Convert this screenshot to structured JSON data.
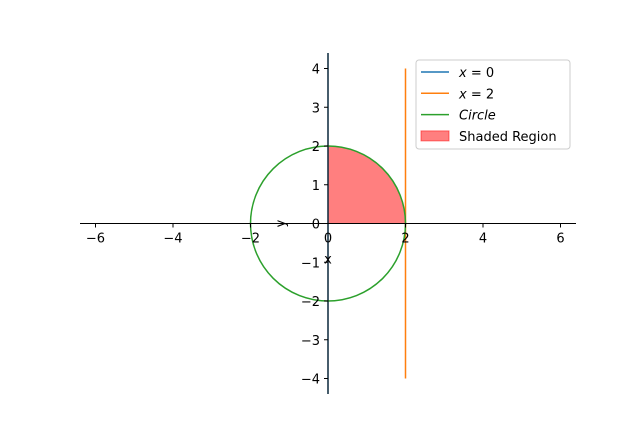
{
  "chart_data": {
    "type": "line",
    "title": "",
    "xlim": [
      -6.4,
      6.4
    ],
    "ylim": [
      -4.4,
      4.4
    ],
    "xticks": [
      -6,
      -4,
      -2,
      0,
      2,
      4,
      6
    ],
    "yticks": [
      -4,
      -3,
      -2,
      -1,
      0,
      1,
      2,
      3,
      4
    ],
    "tick_labels": {
      "x": [
        "−6",
        "−4",
        "−2",
        "0",
        "2",
        "4",
        "6"
      ],
      "y": [
        "−4",
        "−3",
        "−2",
        "−1",
        "0",
        "1",
        "2",
        "3",
        "4"
      ]
    },
    "xlabel": "x",
    "ylabel": "y",
    "grid": false,
    "spines": "centered at origin",
    "legend_position": "top-right",
    "series": [
      {
        "name": "x = 0",
        "kind": "vertical-line",
        "x": 0,
        "y_range": [
          -4.4,
          4.4
        ],
        "color": "#1f77b4"
      },
      {
        "name": "x = 2",
        "kind": "vertical-line",
        "x": 2,
        "y_range": [
          -4,
          4
        ],
        "color": "#ff7f0e"
      },
      {
        "name": "Circle",
        "kind": "circle",
        "center": [
          0,
          0
        ],
        "radius": 2,
        "color": "#2ca02c"
      },
      {
        "name": "Shaded Region",
        "kind": "fill",
        "description": "quarter disk x≥0, y≥0, x²+y²≤4",
        "color": "#ff0000",
        "alpha": 0.5
      }
    ]
  },
  "legend": {
    "items": [
      {
        "label_var": "x",
        "label_rest": " = 0",
        "italic": true,
        "color": "#1f77b4",
        "kind": "line"
      },
      {
        "label_var": "x",
        "label_rest": " = 2",
        "italic": true,
        "color": "#ff7f0e",
        "kind": "line"
      },
      {
        "label_var": "Circle",
        "label_rest": "",
        "italic": true,
        "color": "#2ca02c",
        "kind": "line"
      },
      {
        "label_var": "Shaded Region",
        "label_rest": "",
        "italic": false,
        "color": "#ff7f7f",
        "kind": "patch"
      }
    ]
  }
}
